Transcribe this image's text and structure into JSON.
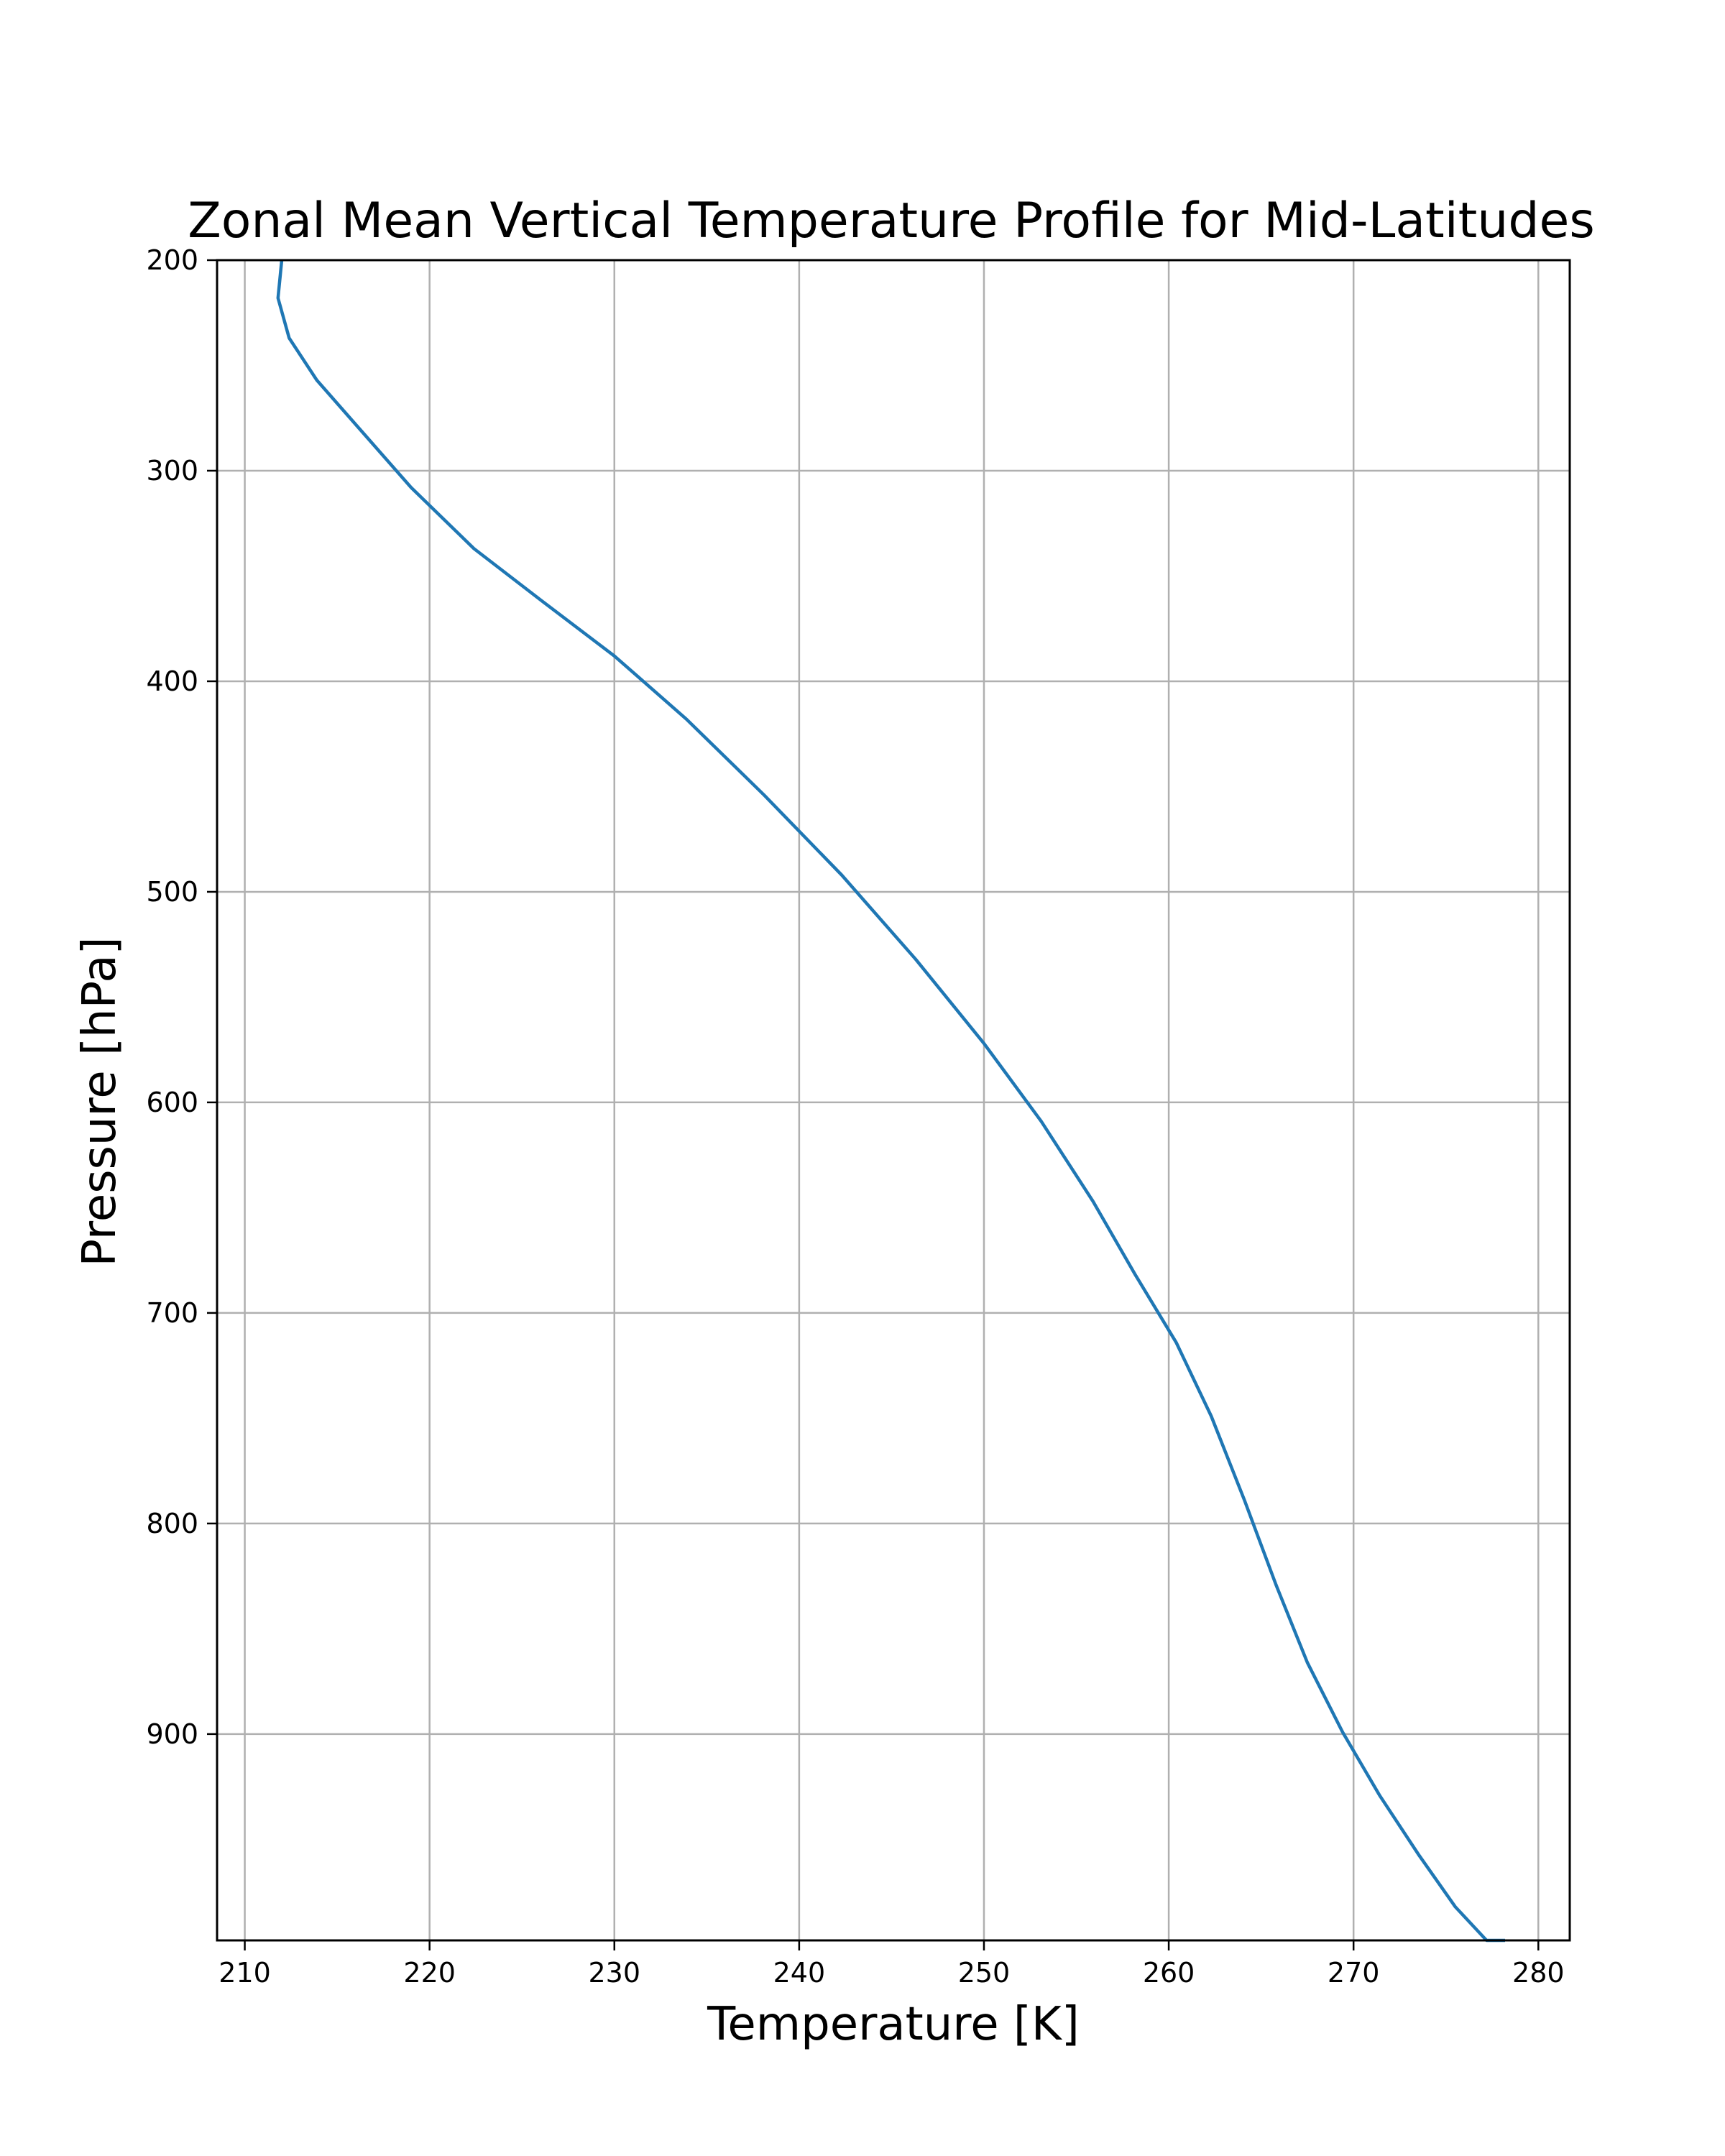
{
  "chart_data": {
    "type": "line",
    "title": "Zonal Mean Vertical Temperature Profile for Mid-Latitudes",
    "xlabel": "Temperature [K]",
    "ylabel": "Pressure [hPa]",
    "xlim": [
      208.5,
      281.7
    ],
    "ylim": [
      200,
      998
    ],
    "y_inverted": true,
    "grid": true,
    "xticks": [
      "210",
      "220",
      "230",
      "240",
      "250",
      "260",
      "270",
      "280"
    ],
    "yticks": [
      "200",
      "300",
      "400",
      "500",
      "600",
      "700",
      "800",
      "900"
    ],
    "series": [
      {
        "color": "#1f77b4",
        "x": [
          212.0,
          211.8,
          212.4,
          213.9,
          216.1,
          219.0,
          222.4,
          226.1,
          230.0,
          233.9,
          238.1,
          242.3,
          246.3,
          250.0,
          253.1,
          255.9,
          258.2,
          260.4,
          262.3,
          264.1,
          265.8,
          267.5,
          269.4,
          271.4,
          273.5,
          275.5,
          277.2,
          278.2
        ],
        "y": [
          200,
          218,
          237,
          257,
          279,
          308,
          337,
          362,
          388,
          418,
          454,
          492,
          532,
          572,
          609,
          647,
          682,
          714,
          749,
          789,
          829,
          866,
          899,
          929,
          957,
          982,
          998,
          998
        ]
      }
    ]
  }
}
